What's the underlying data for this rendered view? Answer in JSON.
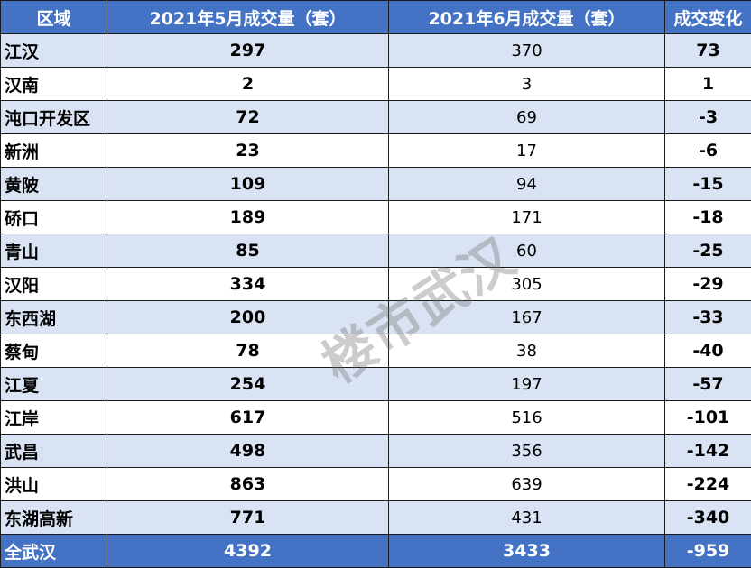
{
  "table": {
    "headers": [
      "区域",
      "2021年5月成交量（套）",
      "2021年6月成交量（套）",
      "成交变化"
    ],
    "rows": [
      {
        "region": "江汉",
        "may": "297",
        "june": "370",
        "change": "73"
      },
      {
        "region": "汉南",
        "may": "2",
        "june": "3",
        "change": "1"
      },
      {
        "region": "沌口开发区",
        "may": "72",
        "june": "69",
        "change": "-3"
      },
      {
        "region": "新洲",
        "may": "23",
        "june": "17",
        "change": "-6"
      },
      {
        "region": "黄陂",
        "may": "109",
        "june": "94",
        "change": "-15"
      },
      {
        "region": "硚口",
        "may": "189",
        "june": "171",
        "change": "-18"
      },
      {
        "region": "青山",
        "may": "85",
        "june": "60",
        "change": "-25"
      },
      {
        "region": "汉阳",
        "may": "334",
        "june": "305",
        "change": "-29"
      },
      {
        "region": "东西湖",
        "may": "200",
        "june": "167",
        "change": "-33"
      },
      {
        "region": "蔡甸",
        "may": "78",
        "june": "38",
        "change": "-40"
      },
      {
        "region": "江夏",
        "may": "254",
        "june": "197",
        "change": "-57"
      },
      {
        "region": "江岸",
        "may": "617",
        "june": "516",
        "change": "-101"
      },
      {
        "region": "武昌",
        "may": "498",
        "june": "356",
        "change": "-142"
      },
      {
        "region": "洪山",
        "may": "863",
        "june": "639",
        "change": "-224"
      },
      {
        "region": "东湖高新",
        "may": "771",
        "june": "431",
        "change": "-340"
      }
    ],
    "total": {
      "region": "全武汉",
      "may": "4392",
      "june": "3433",
      "change": "-959"
    }
  },
  "watermark": "楼市武汉",
  "colors": {
    "header_bg": "#4472c4",
    "stripe": "#dae3f3",
    "header_text": "#ffffff"
  }
}
